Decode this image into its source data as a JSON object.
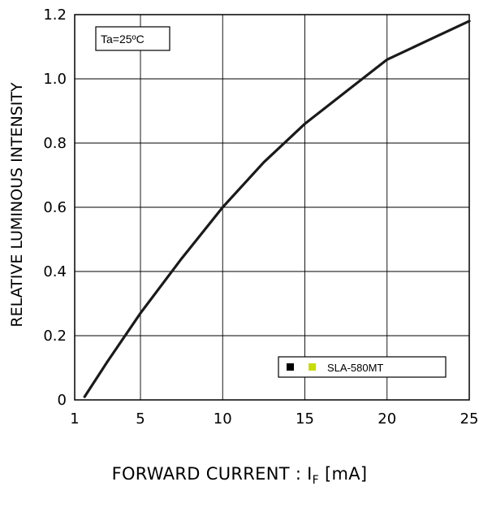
{
  "chart_data": {
    "type": "line",
    "title": "",
    "ylabel": "RELATIVE LUMINOUS INTENSITY",
    "xlabel_prefix": "FORWARD CURRENT : I",
    "xlabel_sub": "F",
    "xlabel_suffix": " [mA]",
    "xlim": [
      1,
      25
    ],
    "ylim": [
      0,
      1.2
    ],
    "x_ticks": [
      1,
      5,
      10,
      15,
      20,
      25
    ],
    "y_ticks": [
      0,
      0.2,
      0.4,
      0.6,
      0.8,
      1.0,
      1.2
    ],
    "x_tick_labels": [
      "1",
      "5",
      "10",
      "15",
      "20",
      "25"
    ],
    "y_tick_labels": [
      "0",
      "0.2",
      "0.4",
      "0.6",
      "0.8",
      "1.0",
      "1.2"
    ],
    "grid": true,
    "annotation": "Ta=25ºC",
    "legend": {
      "placement": "bottom-right",
      "label": "SLA-580MT",
      "swatch_colors": [
        "#000000",
        "#c8dc00"
      ]
    },
    "series": [
      {
        "name": "SLA-580MT",
        "color": "#1a1a1a",
        "x": [
          1.6,
          3,
          5,
          7.5,
          10,
          12.5,
          15,
          17.5,
          20,
          22.5,
          25
        ],
        "y": [
          0.01,
          0.12,
          0.27,
          0.44,
          0.6,
          0.74,
          0.86,
          0.96,
          1.06,
          1.12,
          1.18
        ]
      }
    ]
  }
}
